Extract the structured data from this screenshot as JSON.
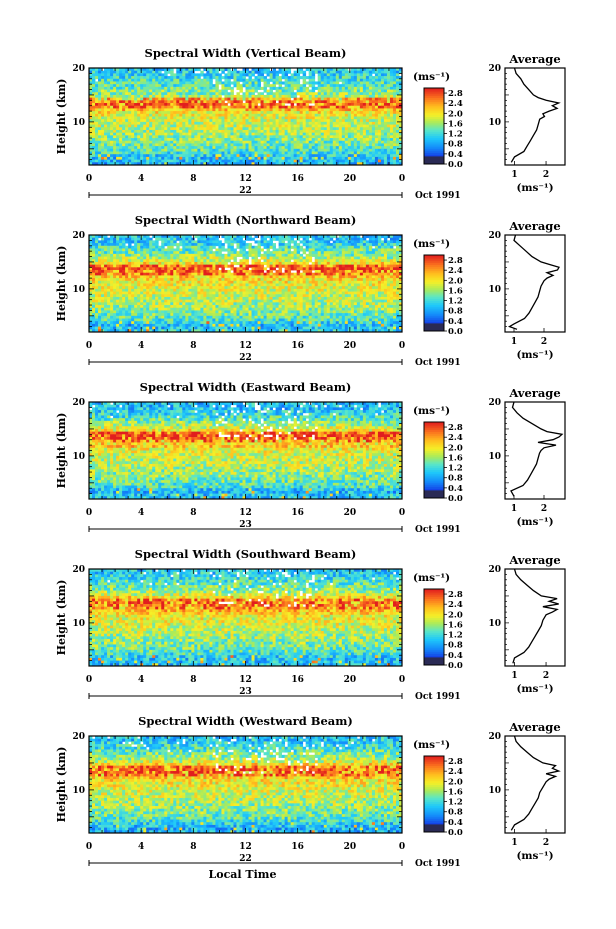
{
  "chart_data": [
    {
      "type": "heatmap",
      "title": "Spectral Width (Vertical Beam)",
      "ylabel": "Height (km)",
      "x_ticks": [
        "0",
        "4",
        "8",
        "12",
        "16",
        "20",
        "0"
      ],
      "date_marker": "22",
      "month_year": "Oct 1991",
      "y_ticks": [
        "20",
        "10"
      ],
      "xlim": [
        0,
        24
      ],
      "ylim": [
        2,
        20
      ],
      "colorbar": {
        "unit": "(ms⁻¹)",
        "ticks": [
          "2.8",
          "2.4",
          "2.0",
          "1.6",
          "1.2",
          "0.8",
          "0.4",
          "0.0"
        ],
        "range": [
          0,
          3.0
        ]
      },
      "profile": {
        "title": "Average",
        "x_ticks": [
          "1",
          "2"
        ],
        "xlim": [
          0.7,
          2.6
        ],
        "xlabel": "(ms⁻¹)",
        "y_ticks": [
          "20",
          "10"
        ],
        "heights": [
          2.5,
          3.5,
          4.5,
          5.5,
          6.5,
          7.5,
          8.5,
          9.5,
          10.5,
          11,
          11.5,
          12,
          12.5,
          13,
          13.5,
          14,
          14.5,
          15,
          16,
          17,
          18,
          19,
          20
        ],
        "values": [
          0.9,
          1.0,
          1.3,
          1.4,
          1.5,
          1.6,
          1.7,
          1.75,
          1.8,
          1.95,
          1.9,
          2.1,
          2.35,
          2.2,
          2.4,
          2.0,
          1.75,
          1.6,
          1.45,
          1.3,
          1.2,
          1.05,
          1.0
        ]
      }
    },
    {
      "type": "heatmap",
      "title": "Spectral Width (Northward Beam)",
      "ylabel": "Height (km)",
      "x_ticks": [
        "0",
        "4",
        "8",
        "12",
        "16",
        "20",
        "0"
      ],
      "date_marker": "22",
      "month_year": "Oct 1991",
      "y_ticks": [
        "20",
        "10"
      ],
      "xlim": [
        0,
        24
      ],
      "ylim": [
        2,
        20
      ],
      "colorbar": {
        "unit": "(ms⁻¹)",
        "ticks": [
          "2.8",
          "2.4",
          "2.0",
          "1.6",
          "1.2",
          "0.8",
          "0.4",
          "0.0"
        ],
        "range": [
          0,
          3.0
        ]
      },
      "profile": {
        "title": "Average",
        "x_ticks": [
          "1",
          "2"
        ],
        "xlim": [
          0.7,
          2.7
        ],
        "xlabel": "(ms⁻¹)",
        "y_ticks": [
          "20",
          "10"
        ],
        "heights": [
          2.5,
          3,
          3.5,
          4.5,
          5.5,
          6.5,
          7.5,
          8.5,
          9.5,
          10.5,
          11.5,
          12,
          12.5,
          13,
          13.5,
          14,
          14.5,
          15,
          16,
          17,
          18,
          19,
          20
        ],
        "values": [
          1.1,
          0.85,
          1.0,
          1.35,
          1.5,
          1.6,
          1.7,
          1.8,
          1.85,
          1.9,
          2.0,
          2.1,
          2.3,
          2.1,
          2.45,
          2.5,
          2.2,
          1.9,
          1.6,
          1.4,
          1.2,
          1.0,
          1.05
        ]
      }
    },
    {
      "type": "heatmap",
      "title": "Spectral Width (Eastward Beam)",
      "ylabel": "Height (km)",
      "x_ticks": [
        "0",
        "4",
        "8",
        "12",
        "16",
        "20",
        "0"
      ],
      "date_marker": "23",
      "month_year": "Oct 1991",
      "y_ticks": [
        "20",
        "10"
      ],
      "xlim": [
        0,
        24
      ],
      "ylim": [
        2,
        20
      ],
      "colorbar": {
        "unit": "(ms⁻¹)",
        "ticks": [
          "2.8",
          "2.4",
          "2.0",
          "1.6",
          "1.2",
          "0.8",
          "0.4",
          "0.0"
        ],
        "range": [
          0,
          3.0
        ]
      },
      "profile": {
        "title": "Average",
        "x_ticks": [
          "1",
          "2"
        ],
        "xlim": [
          0.7,
          2.7
        ],
        "xlabel": "(ms⁻¹)",
        "y_ticks": [
          "20",
          "10"
        ],
        "heights": [
          2.5,
          3.5,
          4.5,
          5.5,
          6.5,
          7.5,
          8.5,
          9.5,
          10.5,
          11,
          11.5,
          12,
          12.5,
          13,
          13.5,
          14,
          14.5,
          15,
          16,
          17,
          18,
          19,
          20
        ],
        "values": [
          1.0,
          0.9,
          1.3,
          1.45,
          1.55,
          1.65,
          1.75,
          1.8,
          1.85,
          1.9,
          2.0,
          2.4,
          1.8,
          2.3,
          2.5,
          2.6,
          2.1,
          1.9,
          1.6,
          1.3,
          1.1,
          0.95,
          1.0
        ]
      }
    },
    {
      "type": "heatmap",
      "title": "Spectral Width (Southward Beam)",
      "ylabel": "Height (km)",
      "x_ticks": [
        "0",
        "4",
        "8",
        "12",
        "16",
        "20",
        "0"
      ],
      "date_marker": "23",
      "month_year": "Oct 1991",
      "y_ticks": [
        "20",
        "10"
      ],
      "xlim": [
        0,
        24
      ],
      "ylim": [
        2,
        20
      ],
      "colorbar": {
        "unit": "(ms⁻¹)",
        "ticks": [
          "2.8",
          "2.4",
          "2.0",
          "1.6",
          "1.2",
          "0.8",
          "0.4",
          "0.0"
        ],
        "range": [
          0,
          3.0
        ]
      },
      "profile": {
        "title": "Average",
        "x_ticks": [
          "1",
          "2"
        ],
        "xlim": [
          0.7,
          2.6
        ],
        "xlabel": "(ms⁻¹)",
        "y_ticks": [
          "20",
          "10"
        ],
        "heights": [
          2.5,
          3.5,
          4.5,
          5.5,
          6.5,
          7.5,
          8.5,
          9.5,
          10.5,
          11.5,
          12,
          12.5,
          13,
          13.5,
          14,
          14.5,
          15,
          16,
          17,
          18,
          19,
          20
        ],
        "values": [
          0.95,
          1.0,
          1.3,
          1.45,
          1.55,
          1.65,
          1.75,
          1.85,
          1.9,
          2.0,
          2.2,
          2.35,
          1.9,
          2.4,
          2.1,
          2.35,
          1.85,
          1.6,
          1.4,
          1.2,
          1.05,
          1.0
        ]
      }
    },
    {
      "type": "heatmap",
      "title": "Spectral Width (Westward Beam)",
      "ylabel": "Height (km)",
      "xlabel": "Local Time",
      "x_ticks": [
        "0",
        "4",
        "8",
        "12",
        "16",
        "20",
        "0"
      ],
      "date_marker": "22",
      "month_year": "Oct 1991",
      "y_ticks": [
        "20",
        "10"
      ],
      "xlim": [
        0,
        24
      ],
      "ylim": [
        2,
        20
      ],
      "colorbar": {
        "unit": "(ms⁻¹)",
        "ticks": [
          "2.8",
          "2.4",
          "2.0",
          "1.6",
          "1.2",
          "0.8",
          "0.4",
          "0.0"
        ],
        "range": [
          0,
          3.0
        ]
      },
      "profile": {
        "title": "Average",
        "x_ticks": [
          "1",
          "2"
        ],
        "xlim": [
          0.7,
          2.6
        ],
        "xlabel": "(ms⁻¹)",
        "y_ticks": [
          "20",
          "10"
        ],
        "heights": [
          2.5,
          3.5,
          4.5,
          5.5,
          6.5,
          7.5,
          8.5,
          9.5,
          10.5,
          11.5,
          12,
          12.5,
          13,
          13.5,
          14,
          14.5,
          15,
          16,
          17,
          18,
          19,
          20
        ],
        "values": [
          0.9,
          1.0,
          1.3,
          1.45,
          1.55,
          1.65,
          1.75,
          1.8,
          1.9,
          2.0,
          2.1,
          2.3,
          2.0,
          2.4,
          2.2,
          2.3,
          1.9,
          1.6,
          1.4,
          1.2,
          1.05,
          1.0
        ]
      }
    }
  ]
}
